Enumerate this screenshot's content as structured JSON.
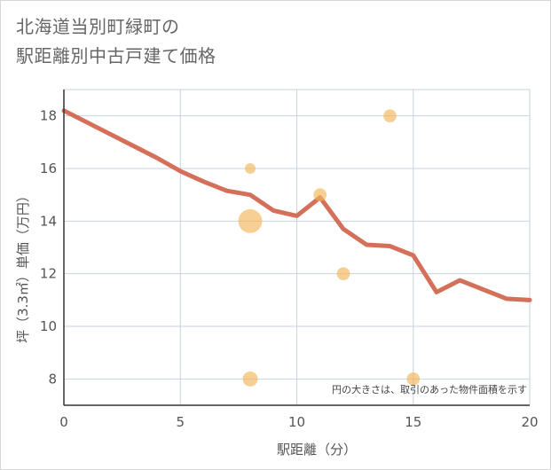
{
  "title_line1": "北海道当別町緑町の",
  "title_line2": "駅距離別中古戸建て価格",
  "colors": {
    "line": "#d4705a",
    "bubble": "#f2b659",
    "grid": "#c7d3e0",
    "axis": "#333333"
  },
  "chart_data": {
    "type": "scatter",
    "title": "北海道当別町緑町の駅距離別中古戸建て価格",
    "xlabel": "駅距離（分）",
    "ylabel": "坪（3.3㎡）単価（万円）",
    "xlim": [
      0,
      20
    ],
    "ylim": [
      7,
      19
    ],
    "xticks": [
      0,
      5,
      10,
      15,
      20
    ],
    "yticks": [
      8,
      10,
      12,
      14,
      16,
      18
    ],
    "note": "円の大きさは、取引のあった物件面積を示す",
    "trend_line": {
      "name": "trend",
      "x": [
        0,
        1,
        2,
        3,
        4,
        5,
        6,
        7,
        8,
        9,
        10,
        11,
        12,
        13,
        14,
        15,
        16,
        17,
        18,
        19,
        20
      ],
      "y": [
        18.2,
        17.75,
        17.3,
        16.85,
        16.4,
        15.9,
        15.5,
        15.15,
        15.0,
        14.4,
        14.2,
        14.9,
        13.7,
        13.1,
        13.05,
        12.7,
        11.3,
        11.75,
        11.4,
        11.05,
        11.0
      ]
    },
    "points": [
      {
        "x": 8,
        "y": 14,
        "size": 5
      },
      {
        "x": 8,
        "y": 16,
        "size": 1
      },
      {
        "x": 8,
        "y": 8,
        "size": 2
      },
      {
        "x": 11,
        "y": 15,
        "size": 1.5
      },
      {
        "x": 12,
        "y": 12,
        "size": 1.5
      },
      {
        "x": 14,
        "y": 18,
        "size": 1.5
      },
      {
        "x": 15,
        "y": 8,
        "size": 1.5
      }
    ]
  }
}
